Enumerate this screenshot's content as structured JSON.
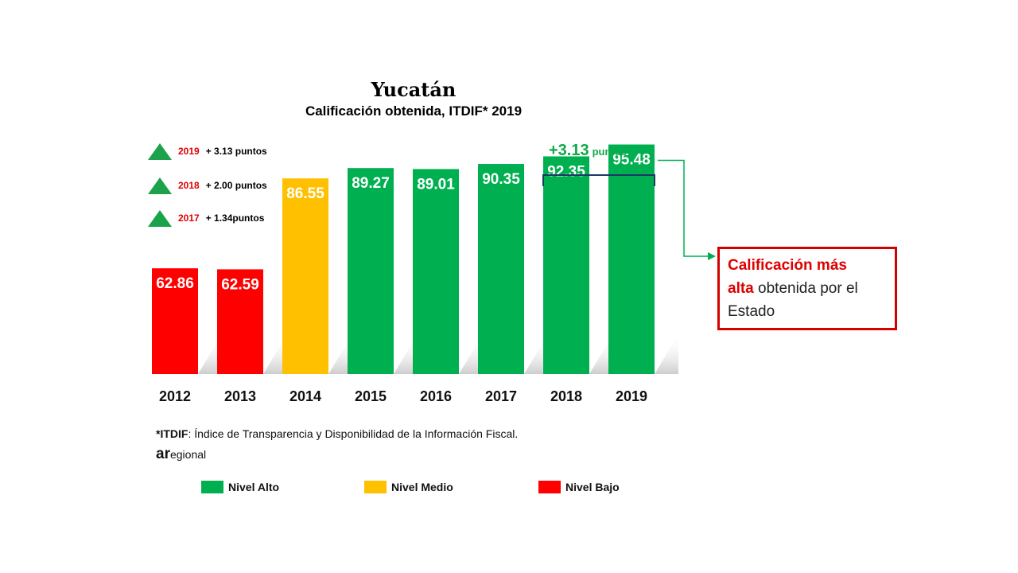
{
  "chart_data": {
    "type": "bar",
    "title": "Yucatán",
    "subtitle": "Calificación obtenida, ITDIF* 2019",
    "categories": [
      "2012",
      "2013",
      "2014",
      "2015",
      "2016",
      "2017",
      "2018",
      "2019"
    ],
    "values": [
      62.86,
      62.59,
      86.55,
      89.27,
      89.01,
      90.35,
      92.35,
      95.48
    ],
    "value_labels": [
      "62.86",
      "62.59",
      "86.55",
      "89.27",
      "89.01",
      "90.35",
      "92.35",
      "95.48"
    ],
    "levels": [
      "Nivel Bajo",
      "Nivel Bajo",
      "Nivel Medio",
      "Nivel Alto",
      "Nivel Alto",
      "Nivel Alto",
      "Nivel Alto",
      "Nivel Alto"
    ],
    "ylim": [
      0,
      100
    ],
    "xlabel": "",
    "ylabel": "",
    "grid": false,
    "legend_position": "bottom"
  },
  "colors": {
    "alto": "#00b050",
    "medio": "#ffc000",
    "bajo": "#ff0000",
    "bracket": "#1f3864",
    "accent_green": "#11a84b",
    "accent_red": "#e00000"
  },
  "changes": [
    {
      "year": "2019",
      "text": "+ 3.13 puntos"
    },
    {
      "year": "2018",
      "text": "+ 2.00 puntos"
    },
    {
      "year": "2017",
      "text": "+ 1.34puntos"
    }
  ],
  "bracket": {
    "value": "+3.13",
    "unit": "puntos"
  },
  "callout": {
    "red_line1": "Calificación más",
    "red_line2": "alta",
    "rest": " obtenida por el Estado"
  },
  "footnote": {
    "term": "*ITDIF",
    "text": ": Índice de Transparencia y Disponibilidad de la Información Fiscal."
  },
  "brand": {
    "bold": "ar",
    "rest": "egional"
  },
  "legend": [
    {
      "label": "Nivel Alto",
      "color": "#00b050"
    },
    {
      "label": "Nivel Medio",
      "color": "#ffc000"
    },
    {
      "label": "Nivel Bajo",
      "color": "#ff0000"
    }
  ]
}
